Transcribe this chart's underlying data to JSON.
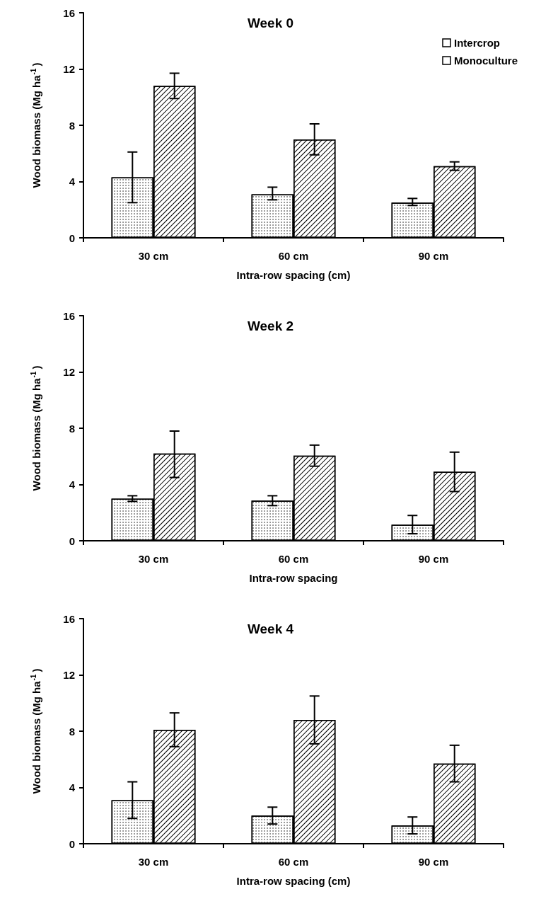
{
  "chart_data": [
    {
      "type": "bar",
      "title": "Week 0",
      "xlabel": "Intra-row spacing (cm)",
      "ylabel": "Wood biomass (Mg ha$^{-1}$)",
      "categories": [
        "30 cm",
        "60 cm",
        "90 cm"
      ],
      "ylim": [
        0,
        16
      ],
      "yticks": [
        0,
        4,
        8,
        12,
        16
      ],
      "legend": "top right",
      "grid": false,
      "series": [
        {
          "name": "Intercrop",
          "color": "#ffffff",
          "values": [
            4.3,
            3.1,
            2.5
          ],
          "errors": [
            [
              2.5,
              6.1
            ],
            [
              2.7,
              3.6
            ],
            [
              2.3,
              2.8
            ]
          ]
        },
        {
          "name": "Monoculture",
          "color": "#ffffff",
          "values": [
            10.8,
            7.0,
            5.1
          ],
          "errors": [
            [
              9.9,
              11.7
            ],
            [
              5.9,
              8.1
            ],
            [
              4.8,
              5.4
            ]
          ]
        }
      ]
    },
    {
      "type": "bar",
      "title": "Week 2",
      "xlabel": "Intra-row spacing",
      "ylabel": "Wood biomass (Mg ha$^{-1}$)",
      "categories": [
        "30 cm",
        "60 cm",
        "90 cm"
      ],
      "ylim": [
        0,
        16
      ],
      "yticks": [
        0,
        4,
        8,
        12,
        16
      ],
      "legend": false,
      "grid": false,
      "series": [
        {
          "color": "#ffffff",
          "values": [
            3.0,
            2.85,
            1.15
          ],
          "errors": [
            [
              2.8,
              3.2
            ],
            [
              2.5,
              3.2
            ],
            [
              0.5,
              1.8
            ]
          ]
        },
        {
          "color": "#ffffff",
          "values": [
            6.2,
            6.05,
            4.9
          ],
          "errors": [
            [
              4.5,
              7.8
            ],
            [
              5.3,
              6.8
            ],
            [
              3.5,
              6.3
            ]
          ]
        }
      ]
    },
    {
      "type": "bar",
      "title": "Week 4",
      "xlabel": "Intra-row spacing (cm)",
      "ylabel": "Wood biomass (Mg ha$^{-1}$)",
      "categories": [
        "30 cm",
        "60 cm",
        "90 cm"
      ],
      "ylim": [
        0,
        16
      ],
      "yticks": [
        0,
        4,
        8,
        12,
        16
      ],
      "legend": false,
      "grid": false,
      "series": [
        {
          "color": "#ffffff",
          "values": [
            3.1,
            2.0,
            1.3
          ],
          "errors": [
            [
              1.8,
              4.4
            ],
            [
              1.4,
              2.6
            ],
            [
              0.7,
              1.9
            ]
          ]
        },
        {
          "color": "#ffffff",
          "values": [
            8.1,
            8.8,
            5.7
          ],
          "errors": [
            [
              6.9,
              9.3
            ],
            [
              7.1,
              10.5
            ],
            [
              4.4,
              7.0
            ]
          ]
        }
      ]
    }
  ]
}
